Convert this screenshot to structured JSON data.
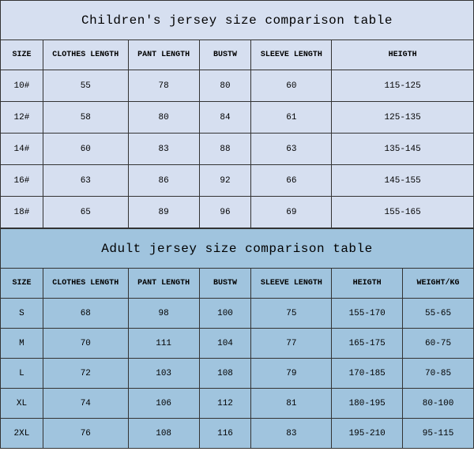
{
  "children_table": {
    "type": "table",
    "title": "Children's jersey size comparison table",
    "title_fontsize": 16,
    "header_fontsize": 10,
    "cell_fontsize": 11,
    "background_color": "#d6dff0",
    "border_color": "#333333",
    "columns": [
      "SIZE",
      "CLOTHES LENGTH",
      "PANT LENGTH",
      "BUSTW",
      "SLEEVE LENGTH",
      "HEIGTH"
    ],
    "rows": [
      [
        "10#",
        "55",
        "78",
        "80",
        "60",
        "115-125"
      ],
      [
        "12#",
        "58",
        "80",
        "84",
        "61",
        "125-135"
      ],
      [
        "14#",
        "60",
        "83",
        "88",
        "63",
        "135-145"
      ],
      [
        "16#",
        "63",
        "86",
        "92",
        "66",
        "145-155"
      ],
      [
        "18#",
        "65",
        "89",
        "96",
        "69",
        "155-165"
      ]
    ]
  },
  "adult_table": {
    "type": "table",
    "title": "Adult jersey size comparison table",
    "title_fontsize": 16,
    "header_fontsize": 10,
    "cell_fontsize": 11,
    "background_color": "#a0c4de",
    "border_color": "#333333",
    "columns": [
      "SIZE",
      "CLOTHES LENGTH",
      "PANT LENGTH",
      "BUSTW",
      "SLEEVE LENGTH",
      "HEIGTH",
      "WEIGHT/KG"
    ],
    "rows": [
      [
        "S",
        "68",
        "98",
        "100",
        "75",
        "155-170",
        "55-65"
      ],
      [
        "M",
        "70",
        "111",
        "104",
        "77",
        "165-175",
        "60-75"
      ],
      [
        "L",
        "72",
        "103",
        "108",
        "79",
        "170-185",
        "70-85"
      ],
      [
        "XL",
        "74",
        "106",
        "112",
        "81",
        "180-195",
        "80-100"
      ],
      [
        "2XL",
        "76",
        "108",
        "116",
        "83",
        "195-210",
        "95-115"
      ]
    ]
  }
}
